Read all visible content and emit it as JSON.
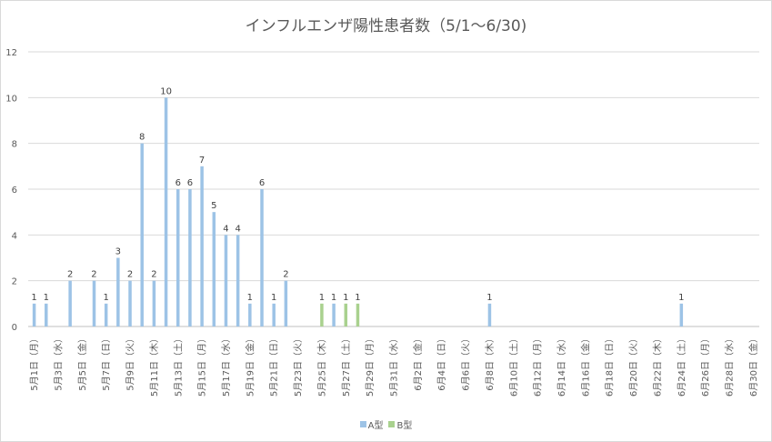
{
  "chart_data": {
    "type": "bar",
    "title": "インフルエンザ陽性患者数（5/1～6/30)",
    "xlabel": "",
    "ylabel": "",
    "ylim": [
      0,
      12
    ],
    "yticks": [
      "0",
      "2",
      "4",
      "6",
      "8",
      "10",
      "12"
    ],
    "grid": true,
    "legend": "bottom",
    "colors": {
      "A型": "#9dc3e6",
      "B型": "#a9d18e",
      "grid": "#d9d9d9",
      "axis": "#bfbfbf"
    },
    "categories": [
      "5月1日",
      "5月2日",
      "5月3日",
      "5月4日",
      "5月5日",
      "5月6日",
      "5月7日",
      "5月8日",
      "5月9日",
      "5月10日",
      "5月11日",
      "5月12日",
      "5月13日",
      "5月14日",
      "5月15日",
      "5月16日",
      "5月17日",
      "5月18日",
      "5月19日",
      "5月20日",
      "5月21日",
      "5月22日",
      "5月23日",
      "5月24日",
      "5月25日",
      "5月26日",
      "5月27日",
      "5月28日",
      "5月29日",
      "5月30日",
      "5月31日",
      "6月1日",
      "6月2日",
      "6月3日",
      "6月4日",
      "6月5日",
      "6月6日",
      "6月7日",
      "6月8日",
      "6月9日",
      "6月10日",
      "6月11日",
      "6月12日",
      "6月13日",
      "6月14日",
      "6月15日",
      "6月16日",
      "6月17日",
      "6月18日",
      "6月19日",
      "6月20日",
      "6月21日",
      "6月22日",
      "6月23日",
      "6月24日",
      "6月25日",
      "6月26日",
      "6月27日",
      "6月28日",
      "6月29日",
      "6月30日"
    ],
    "x_tick_labels": [
      "5月1日（月）",
      "5月3日（水）",
      "5月5日（金）",
      "5月7日（日）",
      "5月9日（火）",
      "5月11日（木）",
      "5月13日（土）",
      "5月15日（月）",
      "5月17日（水）",
      "5月19日（金）",
      "5月21日（日）",
      "5月23日（火）",
      "5月25日（木）",
      "5月27日（土）",
      "5月29日（月）",
      "5月31日（水）",
      "6月2日（金）",
      "6月4日（日）",
      "6月6日（火）",
      "6月8日（木）",
      "6月10日（土）",
      "6月12日（月）",
      "6月14日（水）",
      "6月16日（金）",
      "6月18日（日）",
      "6月20日（火）",
      "6月22日（木）",
      "6月24日（土）",
      "6月26日（月）",
      "6月28日（水）",
      "6月30日（金）"
    ],
    "series": [
      {
        "name": "A型",
        "values": [
          1,
          1,
          0,
          2,
          0,
          2,
          1,
          3,
          2,
          8,
          2,
          10,
          6,
          6,
          7,
          5,
          4,
          4,
          1,
          6,
          1,
          2,
          0,
          0,
          0,
          1,
          0,
          0,
          0,
          0,
          0,
          0,
          0,
          0,
          0,
          0,
          0,
          0,
          1,
          0,
          0,
          0,
          0,
          0,
          0,
          0,
          0,
          0,
          0,
          0,
          0,
          0,
          0,
          0,
          1,
          0,
          0,
          0,
          0,
          0,
          0
        ]
      },
      {
        "name": "B型",
        "values": [
          0,
          0,
          0,
          0,
          0,
          0,
          0,
          0,
          0,
          0,
          0,
          0,
          0,
          0,
          0,
          0,
          0,
          0,
          0,
          0,
          0,
          0,
          0,
          0,
          1,
          0,
          1,
          1,
          0,
          0,
          0,
          0,
          0,
          0,
          0,
          0,
          0,
          0,
          0,
          0,
          0,
          0,
          0,
          0,
          0,
          0,
          0,
          0,
          0,
          0,
          0,
          0,
          0,
          0,
          0,
          0,
          0,
          0,
          0,
          0,
          0
        ]
      }
    ]
  }
}
